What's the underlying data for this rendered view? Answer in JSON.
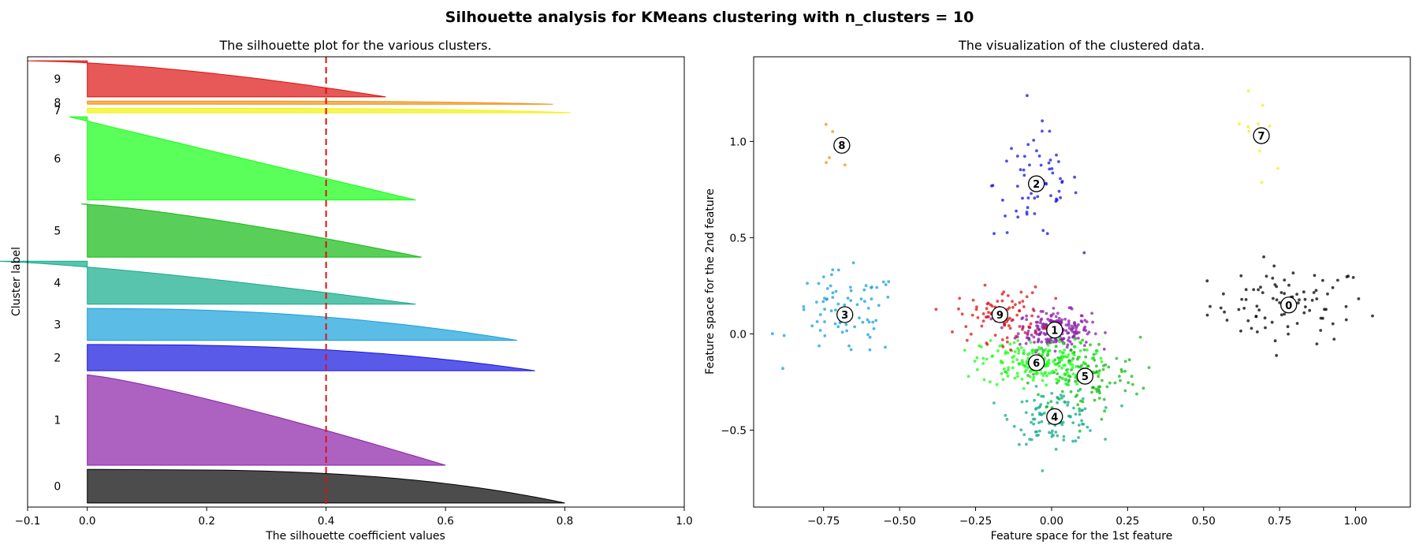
{
  "figure": {
    "suptitle": "Silhouette analysis for KMeans clustering with n_clusters = 10"
  },
  "chart_data": [
    {
      "type": "area",
      "title": "The silhouette plot for the various clusters.",
      "xlabel": "The silhouette coefficient values",
      "ylabel": "Cluster label",
      "xlim": [
        -0.1,
        1.0
      ],
      "ylim": [
        0,
        1110
      ],
      "xticks": [
        "−0.1",
        "0.0",
        "0.2",
        "0.4",
        "0.6",
        "0.8",
        "1.0"
      ],
      "xtick_values": [
        -0.1,
        0.0,
        0.2,
        0.4,
        0.6,
        0.8,
        1.0
      ],
      "yticks": [],
      "average_silhouette_line": 0.4,
      "average_line_color": "#dd1111",
      "clusters": [
        {
          "label": "0",
          "color": "#000000",
          "start": 10,
          "size": 83,
          "max": 0.8,
          "min": 0.0,
          "shape": 3
        },
        {
          "label": "1",
          "color": "#8a1fa6",
          "start": 103,
          "size": 223,
          "max": 0.6,
          "min": 0.0,
          "shape": 1.2
        },
        {
          "label": "2",
          "color": "#1414e0",
          "start": 336,
          "size": 65,
          "max": 0.75,
          "min": 0.0,
          "shape": 2.5
        },
        {
          "label": "3",
          "color": "#169fdc",
          "start": 411,
          "size": 79,
          "max": 0.72,
          "min": 0.0,
          "shape": 2.2
        },
        {
          "label": "4",
          "color": "#12ab8c",
          "start": 500,
          "size": 106,
          "max": 0.55,
          "min": -0.15,
          "shape": 1.3
        },
        {
          "label": "5",
          "color": "#13bb13",
          "start": 616,
          "size": 131,
          "max": 0.56,
          "min": -0.01,
          "shape": 1.3
        },
        {
          "label": "6",
          "color": "#14ff14",
          "start": 757,
          "size": 205,
          "max": 0.55,
          "min": -0.03,
          "shape": 1.0
        },
        {
          "label": "7",
          "color": "#f2f20c",
          "start": 972,
          "size": 11,
          "max": 0.81,
          "min": 0.0,
          "shape": 4
        },
        {
          "label": "8",
          "color": "#f29212",
          "start": 993,
          "size": 8,
          "max": 0.78,
          "min": 0.0,
          "shape": 4
        },
        {
          "label": "9",
          "color": "#dd1111",
          "start": 1011,
          "size": 89,
          "max": 0.5,
          "min": -0.1,
          "shape": 1.6
        }
      ]
    },
    {
      "type": "scatter",
      "title": "The visualization of the clustered data.",
      "xlabel": "Feature space for the 1st feature",
      "ylabel": "Feature space for the 2nd feature",
      "xlim": [
        -0.98,
        1.18
      ],
      "ylim": [
        -0.9,
        1.44
      ],
      "xticks": [
        "−0.75",
        "−0.50",
        "−0.25",
        "0.00",
        "0.25",
        "0.50",
        "0.75",
        "1.00"
      ],
      "xtick_values": [
        -0.75,
        -0.5,
        -0.25,
        0.0,
        0.25,
        0.5,
        0.75,
        1.0
      ],
      "yticks": [
        "−0.5",
        "0.0",
        "0.5",
        "1.0"
      ],
      "ytick_values": [
        -0.5,
        0.0,
        0.5,
        1.0
      ],
      "clusters": [
        {
          "label": "0",
          "color": "#000000",
          "center": [
            0.78,
            0.15
          ],
          "n": 83,
          "spread": [
            0.13,
            0.1
          ]
        },
        {
          "label": "1",
          "color": "#8a1fa6",
          "center": [
            0.01,
            0.02
          ],
          "n": 223,
          "spread": [
            0.06,
            0.05
          ]
        },
        {
          "label": "2",
          "color": "#1414e0",
          "center": [
            -0.05,
            0.78
          ],
          "n": 65,
          "spread": [
            0.07,
            0.14
          ]
        },
        {
          "label": "3",
          "color": "#169fdc",
          "center": [
            -0.68,
            0.1
          ],
          "n": 79,
          "spread": [
            0.09,
            0.11
          ]
        },
        {
          "label": "4",
          "color": "#12ab8c",
          "center": [
            0.01,
            -0.43
          ],
          "n": 106,
          "spread": [
            0.07,
            0.07
          ]
        },
        {
          "label": "5",
          "color": "#13bb13",
          "center": [
            0.11,
            -0.22
          ],
          "n": 131,
          "spread": [
            0.09,
            0.1
          ]
        },
        {
          "label": "6",
          "color": "#14ff14",
          "center": [
            -0.05,
            -0.15
          ],
          "n": 205,
          "spread": [
            0.09,
            0.06
          ]
        },
        {
          "label": "7",
          "color": "#f2f20c",
          "center": [
            0.69,
            1.03
          ],
          "n": 11,
          "spread": [
            0.05,
            0.15
          ]
        },
        {
          "label": "8",
          "color": "#f29212",
          "center": [
            -0.69,
            0.98
          ],
          "n": 8,
          "spread": [
            0.05,
            0.1
          ]
        },
        {
          "label": "9",
          "color": "#dd1111",
          "center": [
            -0.17,
            0.1
          ],
          "n": 89,
          "spread": [
            0.07,
            0.07
          ]
        }
      ]
    }
  ]
}
